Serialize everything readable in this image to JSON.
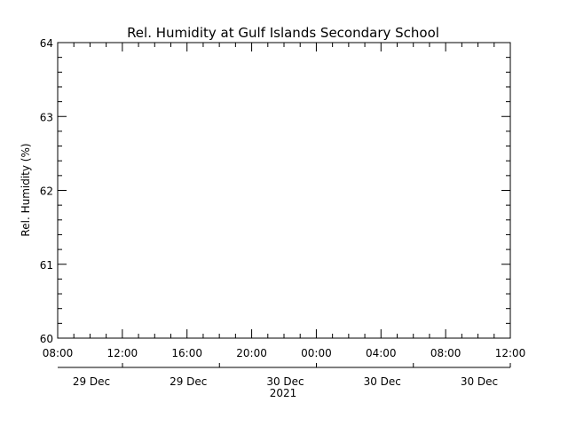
{
  "chart_data": {
    "type": "line",
    "title": "Rel. Humidity at Gulf Islands Secondary School",
    "ylabel": "Rel. Humidity (%)",
    "xlabel": "2021",
    "ylim": [
      60,
      64
    ],
    "yticks": [
      "60",
      "61",
      "62",
      "63",
      "64"
    ],
    "xlim": [
      "2021-12-29 08:00",
      "2021-12-30 12:00"
    ],
    "xticks": [
      "08:00",
      "12:00",
      "16:00",
      "20:00",
      "00:00",
      "04:00",
      "08:00",
      "12:00"
    ],
    "xdate_labels": [
      "29 Dec",
      "29 Dec",
      "30 Dec",
      "30 Dec",
      "30 Dec"
    ],
    "grid": false,
    "series": []
  }
}
